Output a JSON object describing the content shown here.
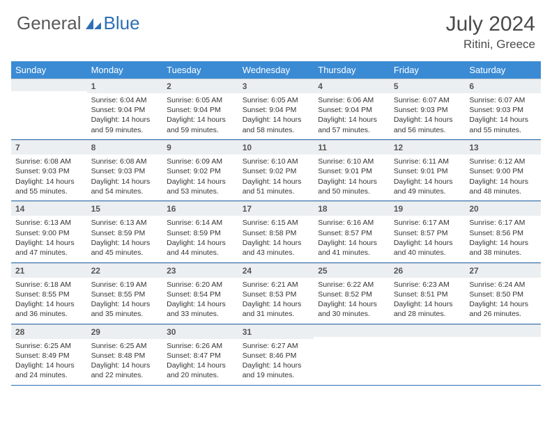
{
  "brand": {
    "general": "General",
    "blue": "Blue"
  },
  "title": {
    "month": "July 2024",
    "location": "Ritini, Greece"
  },
  "colors": {
    "header_bg": "#3b8bd4",
    "header_text": "#ffffff",
    "daynum_bg": "#eceff1",
    "sep": "#2d6fb5",
    "brand_gray": "#5a5a5a",
    "brand_blue": "#2d6fb5"
  },
  "dayNames": [
    "Sunday",
    "Monday",
    "Tuesday",
    "Wednesday",
    "Thursday",
    "Friday",
    "Saturday"
  ],
  "weeks": [
    [
      {
        "n": "",
        "sunrise": "",
        "sunset": "",
        "daylight": ""
      },
      {
        "n": "1",
        "sunrise": "6:04 AM",
        "sunset": "9:04 PM",
        "daylight": "14 hours and 59 minutes."
      },
      {
        "n": "2",
        "sunrise": "6:05 AM",
        "sunset": "9:04 PM",
        "daylight": "14 hours and 59 minutes."
      },
      {
        "n": "3",
        "sunrise": "6:05 AM",
        "sunset": "9:04 PM",
        "daylight": "14 hours and 58 minutes."
      },
      {
        "n": "4",
        "sunrise": "6:06 AM",
        "sunset": "9:04 PM",
        "daylight": "14 hours and 57 minutes."
      },
      {
        "n": "5",
        "sunrise": "6:07 AM",
        "sunset": "9:03 PM",
        "daylight": "14 hours and 56 minutes."
      },
      {
        "n": "6",
        "sunrise": "6:07 AM",
        "sunset": "9:03 PM",
        "daylight": "14 hours and 55 minutes."
      }
    ],
    [
      {
        "n": "7",
        "sunrise": "6:08 AM",
        "sunset": "9:03 PM",
        "daylight": "14 hours and 55 minutes."
      },
      {
        "n": "8",
        "sunrise": "6:08 AM",
        "sunset": "9:03 PM",
        "daylight": "14 hours and 54 minutes."
      },
      {
        "n": "9",
        "sunrise": "6:09 AM",
        "sunset": "9:02 PM",
        "daylight": "14 hours and 53 minutes."
      },
      {
        "n": "10",
        "sunrise": "6:10 AM",
        "sunset": "9:02 PM",
        "daylight": "14 hours and 51 minutes."
      },
      {
        "n": "11",
        "sunrise": "6:10 AM",
        "sunset": "9:01 PM",
        "daylight": "14 hours and 50 minutes."
      },
      {
        "n": "12",
        "sunrise": "6:11 AM",
        "sunset": "9:01 PM",
        "daylight": "14 hours and 49 minutes."
      },
      {
        "n": "13",
        "sunrise": "6:12 AM",
        "sunset": "9:00 PM",
        "daylight": "14 hours and 48 minutes."
      }
    ],
    [
      {
        "n": "14",
        "sunrise": "6:13 AM",
        "sunset": "9:00 PM",
        "daylight": "14 hours and 47 minutes."
      },
      {
        "n": "15",
        "sunrise": "6:13 AM",
        "sunset": "8:59 PM",
        "daylight": "14 hours and 45 minutes."
      },
      {
        "n": "16",
        "sunrise": "6:14 AM",
        "sunset": "8:59 PM",
        "daylight": "14 hours and 44 minutes."
      },
      {
        "n": "17",
        "sunrise": "6:15 AM",
        "sunset": "8:58 PM",
        "daylight": "14 hours and 43 minutes."
      },
      {
        "n": "18",
        "sunrise": "6:16 AM",
        "sunset": "8:57 PM",
        "daylight": "14 hours and 41 minutes."
      },
      {
        "n": "19",
        "sunrise": "6:17 AM",
        "sunset": "8:57 PM",
        "daylight": "14 hours and 40 minutes."
      },
      {
        "n": "20",
        "sunrise": "6:17 AM",
        "sunset": "8:56 PM",
        "daylight": "14 hours and 38 minutes."
      }
    ],
    [
      {
        "n": "21",
        "sunrise": "6:18 AM",
        "sunset": "8:55 PM",
        "daylight": "14 hours and 36 minutes."
      },
      {
        "n": "22",
        "sunrise": "6:19 AM",
        "sunset": "8:55 PM",
        "daylight": "14 hours and 35 minutes."
      },
      {
        "n": "23",
        "sunrise": "6:20 AM",
        "sunset": "8:54 PM",
        "daylight": "14 hours and 33 minutes."
      },
      {
        "n": "24",
        "sunrise": "6:21 AM",
        "sunset": "8:53 PM",
        "daylight": "14 hours and 31 minutes."
      },
      {
        "n": "25",
        "sunrise": "6:22 AM",
        "sunset": "8:52 PM",
        "daylight": "14 hours and 30 minutes."
      },
      {
        "n": "26",
        "sunrise": "6:23 AM",
        "sunset": "8:51 PM",
        "daylight": "14 hours and 28 minutes."
      },
      {
        "n": "27",
        "sunrise": "6:24 AM",
        "sunset": "8:50 PM",
        "daylight": "14 hours and 26 minutes."
      }
    ],
    [
      {
        "n": "28",
        "sunrise": "6:25 AM",
        "sunset": "8:49 PM",
        "daylight": "14 hours and 24 minutes."
      },
      {
        "n": "29",
        "sunrise": "6:25 AM",
        "sunset": "8:48 PM",
        "daylight": "14 hours and 22 minutes."
      },
      {
        "n": "30",
        "sunrise": "6:26 AM",
        "sunset": "8:47 PM",
        "daylight": "14 hours and 20 minutes."
      },
      {
        "n": "31",
        "sunrise": "6:27 AM",
        "sunset": "8:46 PM",
        "daylight": "14 hours and 19 minutes."
      },
      {
        "n": "",
        "sunrise": "",
        "sunset": "",
        "daylight": ""
      },
      {
        "n": "",
        "sunrise": "",
        "sunset": "",
        "daylight": ""
      },
      {
        "n": "",
        "sunrise": "",
        "sunset": "",
        "daylight": ""
      }
    ]
  ],
  "labels": {
    "sunrise": "Sunrise: ",
    "sunset": "Sunset: ",
    "daylight": "Daylight: "
  }
}
